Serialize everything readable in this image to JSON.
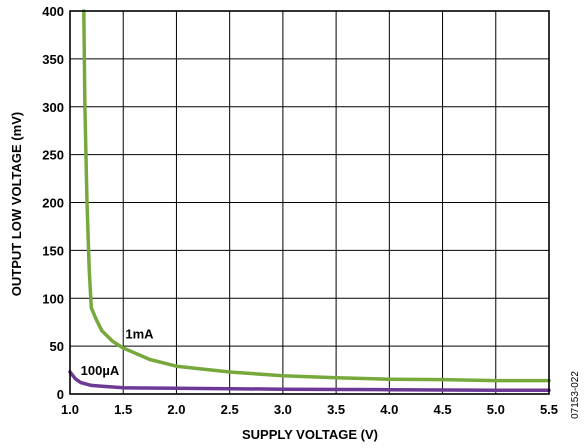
{
  "chart_data": {
    "type": "line",
    "xlabel": "SUPPLY VOLTAGE (V)",
    "ylabel": "OUTPUT LOW VOLTAGE (mV)",
    "xlim": [
      1.0,
      5.5
    ],
    "ylim": [
      0,
      400
    ],
    "x_ticks": [
      "1.0",
      "1.5",
      "2.0",
      "2.5",
      "3.0",
      "3.5",
      "4.0",
      "4.5",
      "5.0",
      "5.5"
    ],
    "y_ticks": [
      "0",
      "50",
      "100",
      "150",
      "200",
      "250",
      "300",
      "350",
      "400"
    ],
    "grid": true,
    "series": [
      {
        "name": "1mA",
        "color": "#77a83c",
        "points": [
          [
            1.13,
            400
          ],
          [
            1.14,
            300
          ],
          [
            1.16,
            200
          ],
          [
            1.18,
            130
          ],
          [
            1.2,
            90
          ],
          [
            1.25,
            77
          ],
          [
            1.3,
            66
          ],
          [
            1.4,
            55
          ],
          [
            1.5,
            48
          ],
          [
            1.75,
            36
          ],
          [
            2.0,
            29
          ],
          [
            2.5,
            23
          ],
          [
            3.0,
            19
          ],
          [
            3.5,
            17
          ],
          [
            4.0,
            15.5
          ],
          [
            4.5,
            15
          ],
          [
            5.0,
            14
          ],
          [
            5.5,
            14
          ]
        ]
      },
      {
        "name": "100µA",
        "color": "#6c3a96",
        "points": [
          [
            1.0,
            23
          ],
          [
            1.05,
            16
          ],
          [
            1.1,
            12
          ],
          [
            1.2,
            9
          ],
          [
            1.3,
            8
          ],
          [
            1.5,
            6.5
          ],
          [
            2.0,
            6
          ],
          [
            2.5,
            5.5
          ],
          [
            3.0,
            5
          ],
          [
            4.0,
            4.5
          ],
          [
            5.0,
            4
          ],
          [
            5.5,
            4
          ]
        ]
      }
    ],
    "annotations": [
      {
        "text": "1mA",
        "x": 1.52,
        "y": 58
      },
      {
        "text": "100µA",
        "x": 1.1,
        "y": 20
      }
    ],
    "figure_code": "07153-022"
  }
}
